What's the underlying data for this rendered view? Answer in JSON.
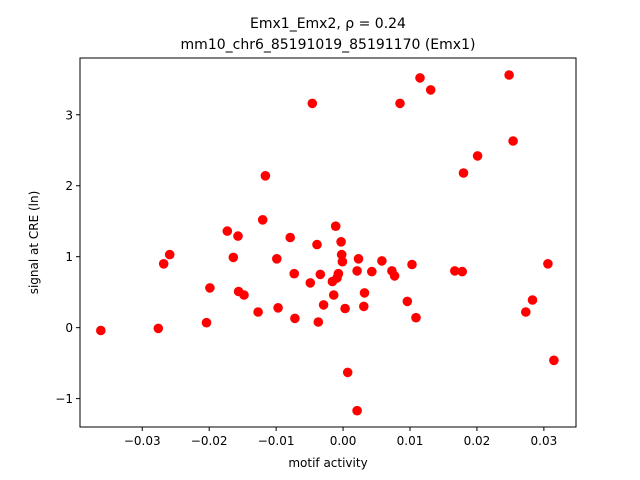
{
  "chart_data": {
    "type": "scatter",
    "title_line1": "Emx1_Emx2, ρ = 0.24",
    "title_line2": "mm10_chr6_85191019_85191170 (Emx1)",
    "xlabel": "motif activity",
    "ylabel": "signal at CRE (ln)",
    "xlim": [
      -0.0393,
      0.0348
    ],
    "ylim": [
      -1.4,
      3.8
    ],
    "xticks": [
      -0.03,
      -0.02,
      -0.01,
      0.0,
      0.01,
      0.02,
      0.03
    ],
    "xtick_labels": [
      "−0.03",
      "−0.02",
      "−0.01",
      "0.00",
      "0.01",
      "0.02",
      "0.03"
    ],
    "yticks": [
      -1,
      0,
      1,
      2,
      3
    ],
    "ytick_labels": [
      "−1",
      "0",
      "1",
      "2",
      "3"
    ],
    "marker_color": "#ff0000",
    "grid": false,
    "points": [
      {
        "x": -0.0362,
        "y": -0.04
      },
      {
        "x": -0.0276,
        "y": -0.01
      },
      {
        "x": -0.0268,
        "y": 0.9
      },
      {
        "x": -0.0259,
        "y": 1.03
      },
      {
        "x": -0.0204,
        "y": 0.07
      },
      {
        "x": -0.0199,
        "y": 0.56
      },
      {
        "x": -0.0173,
        "y": 1.36
      },
      {
        "x": -0.0164,
        "y": 0.99
      },
      {
        "x": -0.0157,
        "y": 1.29
      },
      {
        "x": -0.0156,
        "y": 0.51
      },
      {
        "x": -0.0148,
        "y": 0.46
      },
      {
        "x": -0.0127,
        "y": 0.22
      },
      {
        "x": -0.012,
        "y": 1.52
      },
      {
        "x": -0.0116,
        "y": 2.14
      },
      {
        "x": -0.0099,
        "y": 0.97
      },
      {
        "x": -0.0097,
        "y": 0.28
      },
      {
        "x": -0.0079,
        "y": 1.27
      },
      {
        "x": -0.0073,
        "y": 0.76
      },
      {
        "x": -0.0072,
        "y": 0.13
      },
      {
        "x": -0.0049,
        "y": 0.63
      },
      {
        "x": -0.0046,
        "y": 3.16
      },
      {
        "x": -0.0039,
        "y": 1.17
      },
      {
        "x": -0.0037,
        "y": 0.08
      },
      {
        "x": -0.0034,
        "y": 0.75
      },
      {
        "x": -0.0029,
        "y": 0.32
      },
      {
        "x": -0.0016,
        "y": 0.65
      },
      {
        "x": -0.0014,
        "y": 0.46
      },
      {
        "x": -0.0011,
        "y": 1.43
      },
      {
        "x": -0.0009,
        "y": 0.7
      },
      {
        "x": -0.0007,
        "y": 0.76
      },
      {
        "x": -0.0003,
        "y": 1.21
      },
      {
        "x": -0.0002,
        "y": 1.03
      },
      {
        "x": -0.0001,
        "y": 0.93
      },
      {
        "x": 0.0003,
        "y": 0.27
      },
      {
        "x": 0.0007,
        "y": -0.63
      },
      {
        "x": 0.0021,
        "y": 0.8
      },
      {
        "x": 0.0021,
        "y": -1.17
      },
      {
        "x": 0.0023,
        "y": 0.97
      },
      {
        "x": 0.0031,
        "y": 0.3
      },
      {
        "x": 0.0032,
        "y": 0.49
      },
      {
        "x": 0.0043,
        "y": 0.79
      },
      {
        "x": 0.0058,
        "y": 0.94
      },
      {
        "x": 0.0073,
        "y": 0.8
      },
      {
        "x": 0.0077,
        "y": 0.73
      },
      {
        "x": 0.0085,
        "y": 3.16
      },
      {
        "x": 0.0096,
        "y": 0.37
      },
      {
        "x": 0.0103,
        "y": 0.89
      },
      {
        "x": 0.0109,
        "y": 0.14
      },
      {
        "x": 0.0115,
        "y": 3.52
      },
      {
        "x": 0.0131,
        "y": 3.35
      },
      {
        "x": 0.0167,
        "y": 0.8
      },
      {
        "x": 0.0178,
        "y": 0.79
      },
      {
        "x": 0.018,
        "y": 2.18
      },
      {
        "x": 0.0201,
        "y": 2.42
      },
      {
        "x": 0.0248,
        "y": 3.56
      },
      {
        "x": 0.0254,
        "y": 2.63
      },
      {
        "x": 0.0273,
        "y": 0.22
      },
      {
        "x": 0.0283,
        "y": 0.39
      },
      {
        "x": 0.0306,
        "y": 0.9
      },
      {
        "x": 0.0315,
        "y": -0.46
      }
    ]
  }
}
